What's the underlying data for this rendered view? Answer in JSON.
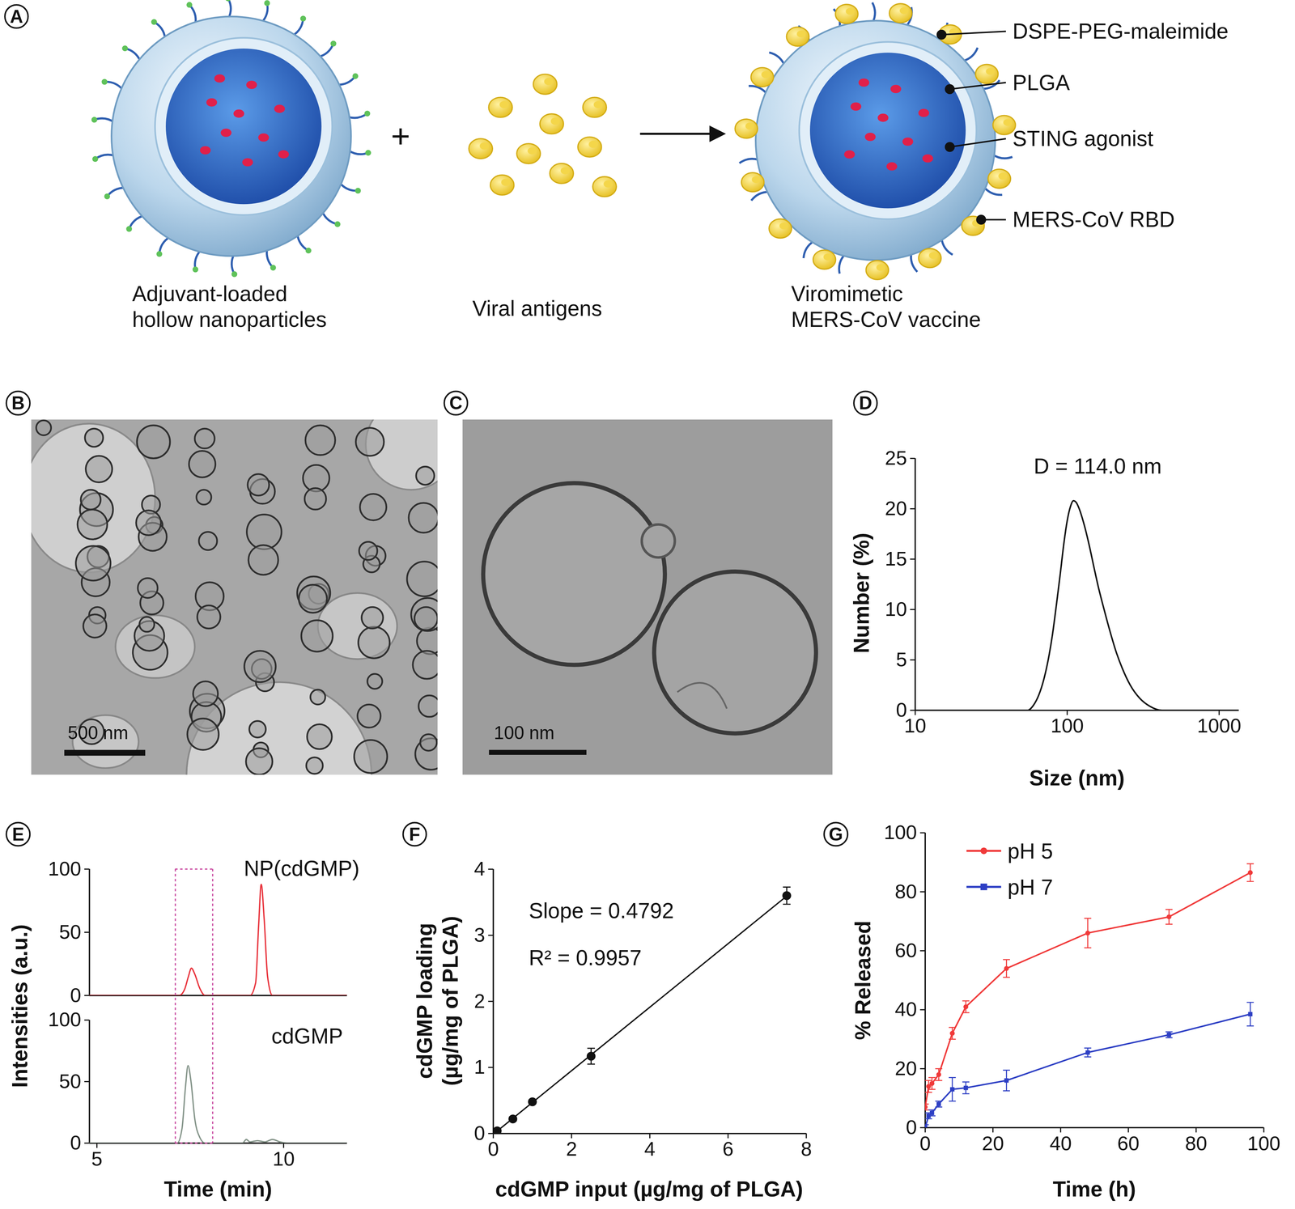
{
  "schematic": {
    "panel": "A",
    "labels": [
      "DSPE-PEG-maleimide",
      "PLGA",
      "STING agonist",
      "MERS-CoV RBD"
    ],
    "captions": [
      [
        "Adjuvant-loaded",
        "hollow nanoparticles"
      ],
      [
        "Viral antigens"
      ],
      [
        "Viromimetic",
        "MERS-CoV vaccine"
      ]
    ],
    "operator": "+"
  },
  "micrographs": [
    {
      "panel": "B",
      "scale_bar": "500 nm"
    },
    {
      "panel": "C",
      "scale_bar": "100 nm"
    }
  ],
  "chart_data": [
    {
      "panel": "D",
      "type": "line",
      "x_label": "Size (nm)",
      "y_label": "Number (%)",
      "annotations": [
        "D = 114.0 nm"
      ],
      "log": "x",
      "color": "#111111",
      "x": [
        10,
        55,
        60,
        65,
        70,
        75,
        80,
        85,
        90,
        95,
        100,
        105,
        110,
        115,
        120,
        130,
        140,
        150,
        160,
        175,
        190,
        210,
        230,
        260,
        300,
        350,
        420,
        1350
      ],
      "values": [
        0,
        0,
        0.5,
        1.5,
        3,
        5,
        7.5,
        10.5,
        13.5,
        16.5,
        18.8,
        20.2,
        20.8,
        20.6,
        20,
        18.3,
        16.3,
        14.2,
        12.3,
        10,
        8,
        5.8,
        4.2,
        2.5,
        1.2,
        0.4,
        0,
        0
      ],
      "xlim": [
        10,
        1350
      ],
      "xticks": [
        10,
        100,
        1000
      ],
      "ylim": [
        0,
        25
      ],
      "yticks": [
        0,
        5,
        10,
        15,
        20,
        25
      ]
    },
    {
      "panel": "E",
      "type": "line",
      "x_label": "Time (min)",
      "y_label": "Intensities (a.u.)",
      "highlight": [
        7.1,
        8.1
      ],
      "series": [
        {
          "name": "NP(cdGMP)",
          "color": "#e8333c",
          "x": [
            4.8,
            7.2,
            7.35,
            7.45,
            7.53,
            7.62,
            7.75,
            7.9,
            9.1,
            9.25,
            9.33,
            9.4,
            9.48,
            9.57,
            9.7,
            11.7
          ],
          "values": [
            0,
            0,
            5,
            15,
            21.6,
            17,
            6,
            0,
            0,
            10,
            55,
            88,
            60,
            15,
            0,
            0
          ]
        },
        {
          "name": "cdGMP",
          "color": "#849489",
          "x": [
            4.8,
            7.15,
            7.28,
            7.37,
            7.44,
            7.52,
            7.62,
            7.75,
            7.9,
            8.9,
            9.0,
            9.1,
            9.3,
            9.5,
            9.7,
            9.9,
            10.1,
            11.7
          ],
          "values": [
            0,
            0,
            12,
            45,
            63,
            50,
            20,
            5,
            0,
            0,
            3,
            1,
            2,
            1,
            3,
            1,
            0,
            0
          ]
        }
      ],
      "xlim": [
        4.8,
        11.7
      ],
      "xticks": [
        5,
        10
      ],
      "ylim": [
        0,
        100
      ],
      "yticks": [
        0,
        50,
        100
      ]
    },
    {
      "panel": "F",
      "type": "scatter",
      "x_label": "cdGMP input (µg/mg of PLGA)",
      "y_label": [
        "cdGMP loading",
        "(µg/mg of PLGA)"
      ],
      "annotations": [
        "Slope = 0.4792",
        "R² = 0.9957"
      ],
      "color": "#111111",
      "marker": "circle",
      "line_style": "solid",
      "x": [
        0,
        0.1,
        0.5,
        1,
        2.5,
        7.5
      ],
      "values": [
        0,
        0.04,
        0.22,
        0.48,
        1.17,
        3.6
      ],
      "errors": [
        0.01,
        0.02,
        0.03,
        0.03,
        0.12,
        0.13
      ],
      "xlim": [
        0,
        8
      ],
      "xticks": [
        0,
        2,
        4,
        6,
        8
      ],
      "ylim": [
        0,
        4
      ],
      "yticks": [
        0,
        1,
        2,
        3,
        4
      ]
    },
    {
      "panel": "G",
      "type": "line",
      "x_label": "Time (h)",
      "y_label": "% Released",
      "legend": "top-left",
      "x": [
        0,
        1,
        2,
        4,
        8,
        12,
        24,
        48,
        72,
        96
      ],
      "series": [
        {
          "name": "pH 5",
          "color": "#f03a3a",
          "marker": "circle",
          "values": [
            7,
            14,
            15,
            18,
            32,
            41,
            54,
            66,
            71.5,
            86.5
          ],
          "errors": [
            1,
            2,
            2,
            2,
            2,
            2,
            3,
            5,
            2.5,
            3
          ]
        },
        {
          "name": "pH 7",
          "color": "#2d3fc4",
          "marker": "square",
          "values": [
            0,
            4,
            5,
            8,
            13,
            13.5,
            16,
            25.5,
            31.5,
            38.5
          ],
          "errors": [
            1,
            1,
            1,
            1,
            4,
            2,
            3.5,
            1.5,
            1,
            4
          ]
        }
      ],
      "xlim": [
        0,
        100
      ],
      "xticks": [
        0,
        20,
        40,
        60,
        80,
        100
      ],
      "ylim": [
        0,
        100
      ],
      "yticks": [
        0,
        20,
        40,
        60,
        80,
        100
      ]
    }
  ]
}
